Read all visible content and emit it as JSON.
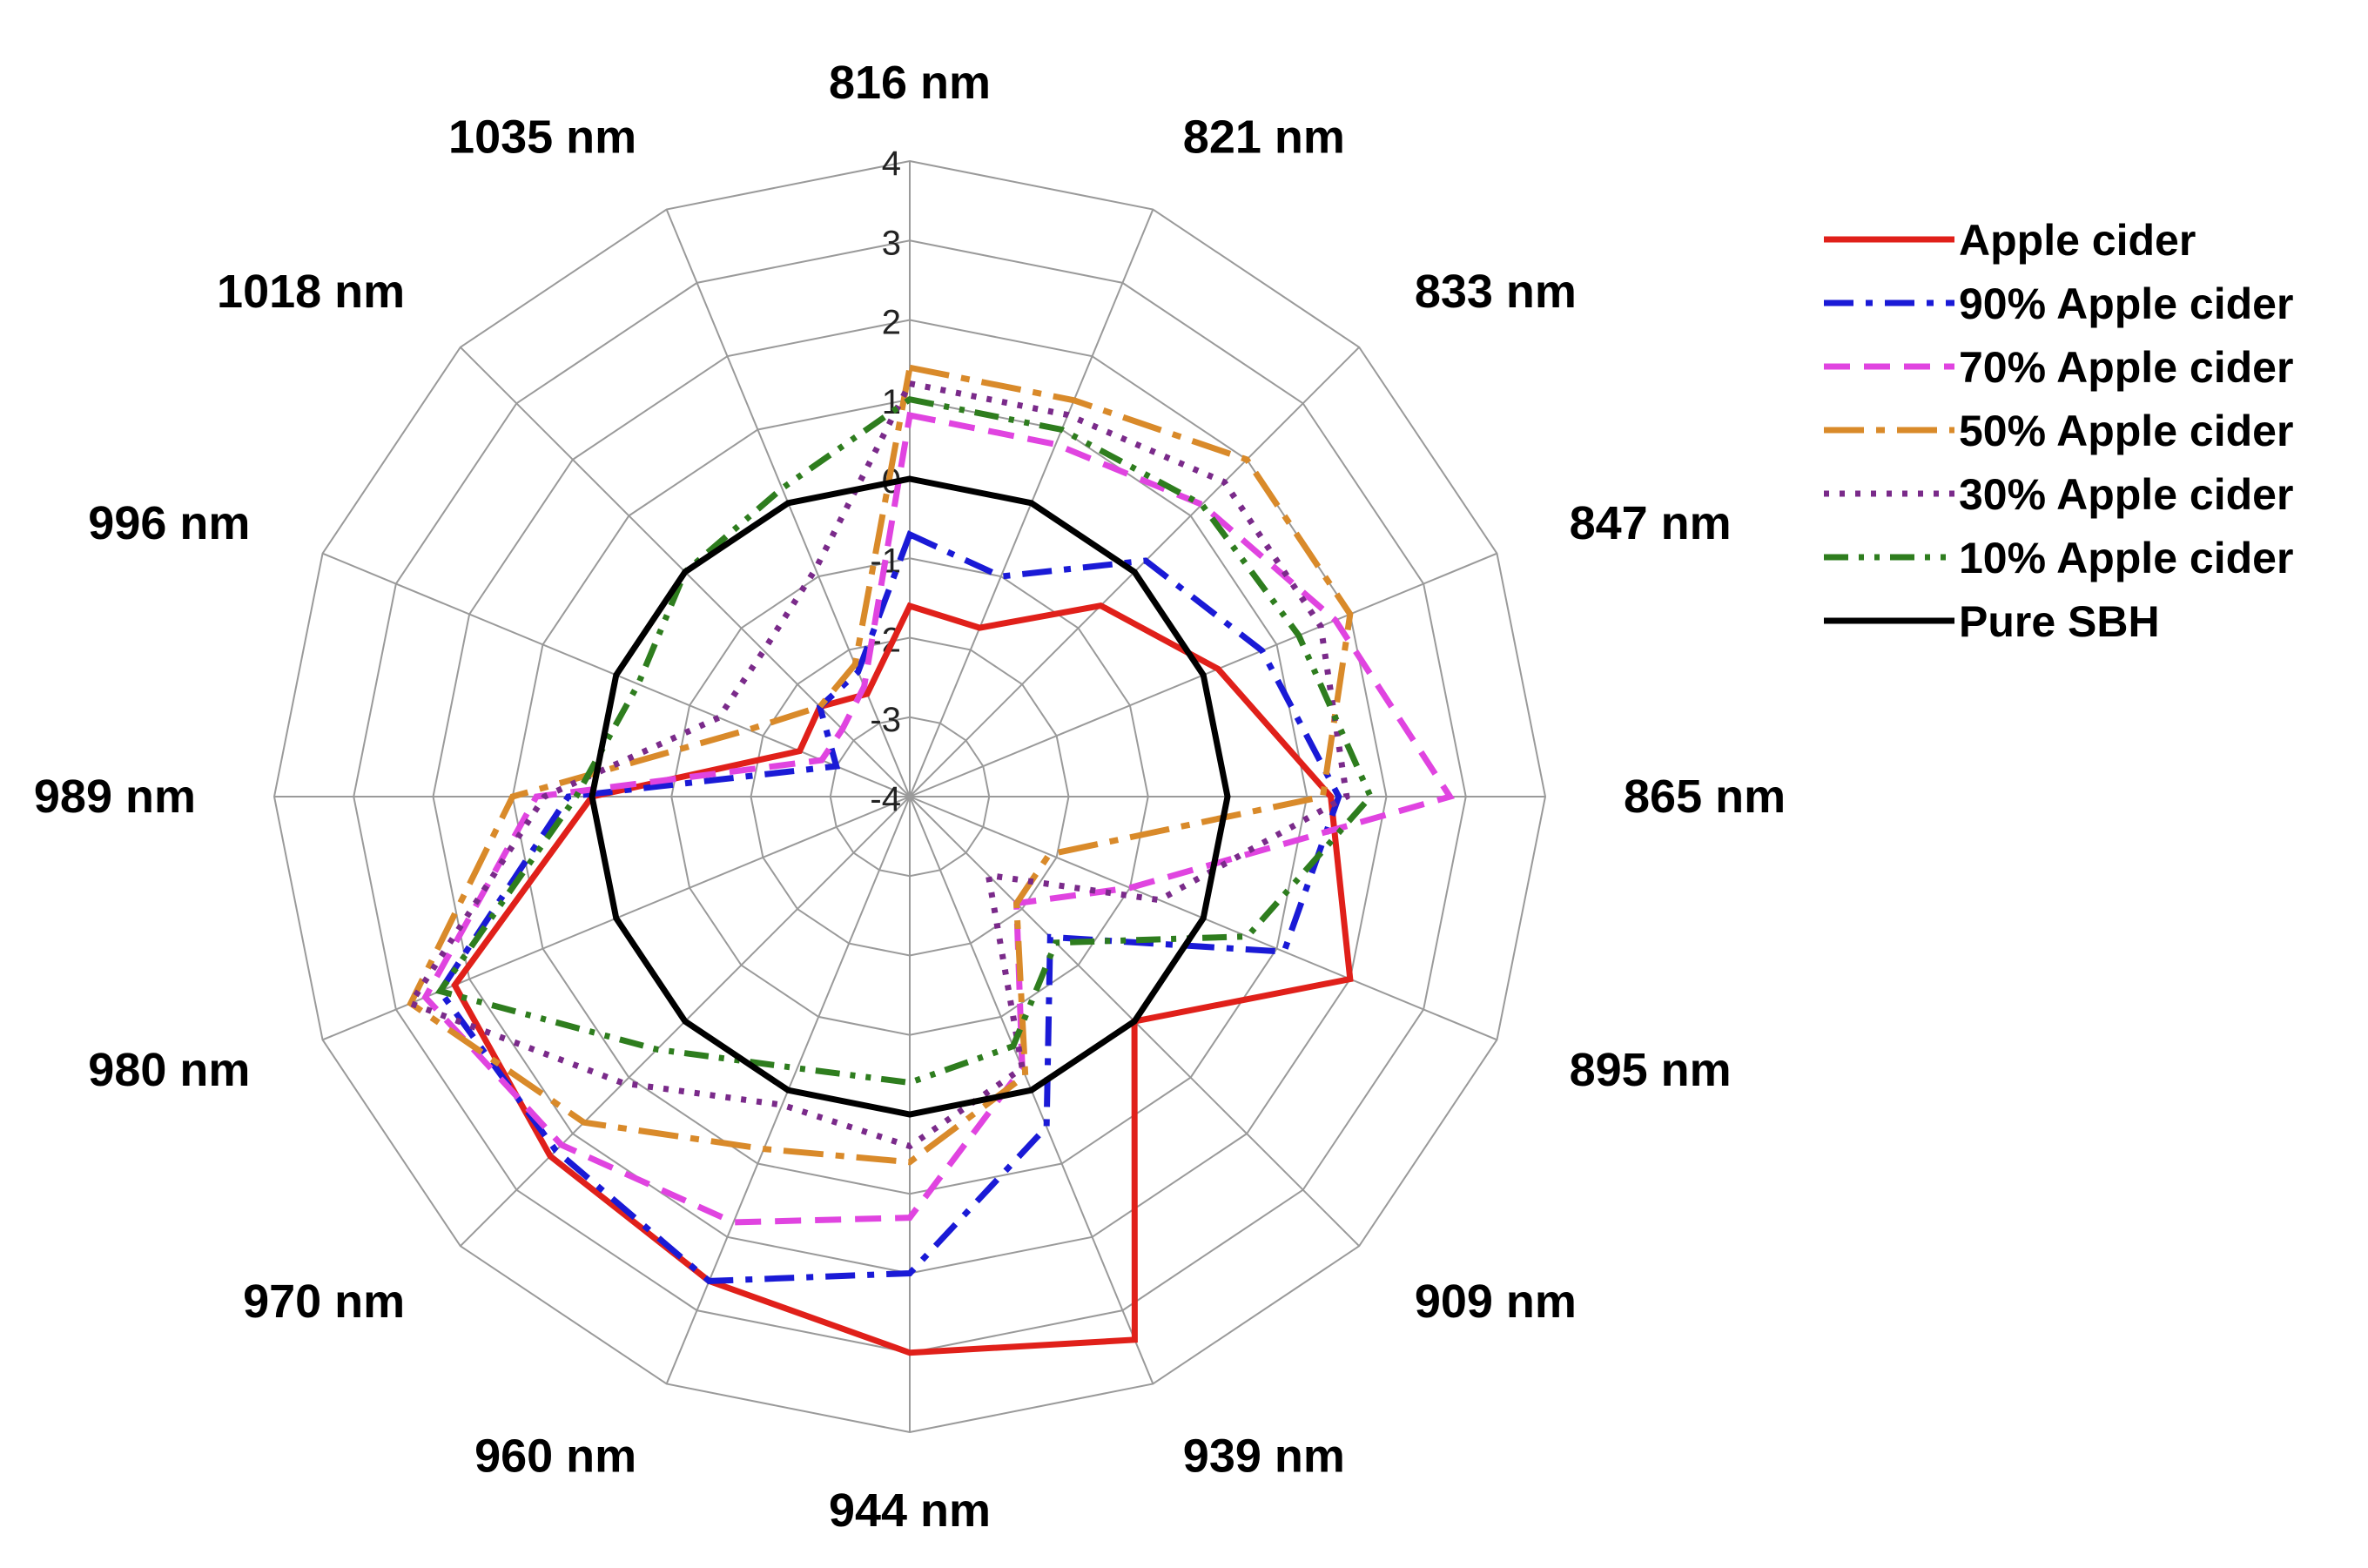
{
  "chart_data": {
    "type": "radar",
    "title": "",
    "categories": [
      "816 nm",
      "821 nm",
      "833 nm",
      "847 nm",
      "865 nm",
      "895 nm",
      "909 nm",
      "939 nm",
      "944 nm",
      "960 nm",
      "970 nm",
      "980 nm",
      "989 nm",
      "996 nm",
      "1018 nm",
      "1035 nm"
    ],
    "rlim": [
      -4,
      4
    ],
    "r_ticks": [
      "-4",
      "-3",
      "-2",
      "-1",
      "0",
      "1",
      "2",
      "3",
      "4"
    ],
    "grid": true,
    "legend_position": "right",
    "series": [
      {
        "name": "Apple cider",
        "color": "#e0201a",
        "dash": "solid",
        "values": [
          -1.6,
          -1.7,
          -0.6,
          0.2,
          1.3,
          2.0,
          0.0,
          3.4,
          3.0,
          2.6,
          2.4,
          2.2,
          0.0,
          -2.5,
          -2.4,
          -2.6
        ]
      },
      {
        "name": "90% Apple cider",
        "color": "#1a1ad6",
        "dash": "dashdot",
        "values": [
          -0.7,
          -1.0,
          0.2,
          0.8,
          1.4,
          1.1,
          -1.5,
          0.5,
          2.0,
          2.6,
          2.3,
          2.4,
          0.3,
          -3.0,
          -2.4,
          -2.3
        ]
      },
      {
        "name": "70% Apple cider",
        "color": "#e044e0",
        "dash": "dash",
        "values": [
          0.8,
          0.8,
          1.2,
          1.8,
          2.8,
          -1.0,
          -2.1,
          -0.3,
          1.3,
          1.8,
          2.2,
          2.6,
          0.7,
          -2.8,
          -2.8,
          -2.5
        ]
      },
      {
        "name": "50% Apple cider",
        "color": "#d98a2a",
        "dash": "longdashdot",
        "values": [
          1.4,
          1.4,
          2.0,
          2.0,
          1.2,
          -2.1,
          -2.1,
          -0.2,
          0.6,
          0.8,
          1.8,
          2.8,
          1.0,
          -1.8,
          -2.4,
          -2.2
        ]
      },
      {
        "name": "30% Apple cider",
        "color": "#7a2a8a",
        "dash": "dot",
        "values": [
          1.2,
          1.2,
          1.6,
          1.6,
          1.5,
          -0.6,
          -2.6,
          -0.3,
          0.4,
          0.2,
          1.1,
          2.8,
          0.6,
          -1.4,
          -1.4,
          -0.9
        ]
      },
      {
        "name": "10% Apple cider",
        "color": "#2e7d1e",
        "dash": "dashdotdot",
        "values": [
          1.0,
          1.0,
          1.2,
          1.3,
          1.8,
          0.6,
          -1.4,
          -0.6,
          -0.4,
          -0.3,
          0.5,
          2.4,
          0.2,
          -0.3,
          0.0,
          0.2
        ]
      },
      {
        "name": "Pure SBH",
        "color": "#000000",
        "dash": "solid",
        "values": [
          0,
          0,
          0,
          0,
          0,
          0,
          0,
          0,
          0,
          0,
          0,
          0,
          0,
          0,
          0,
          0
        ]
      }
    ]
  }
}
